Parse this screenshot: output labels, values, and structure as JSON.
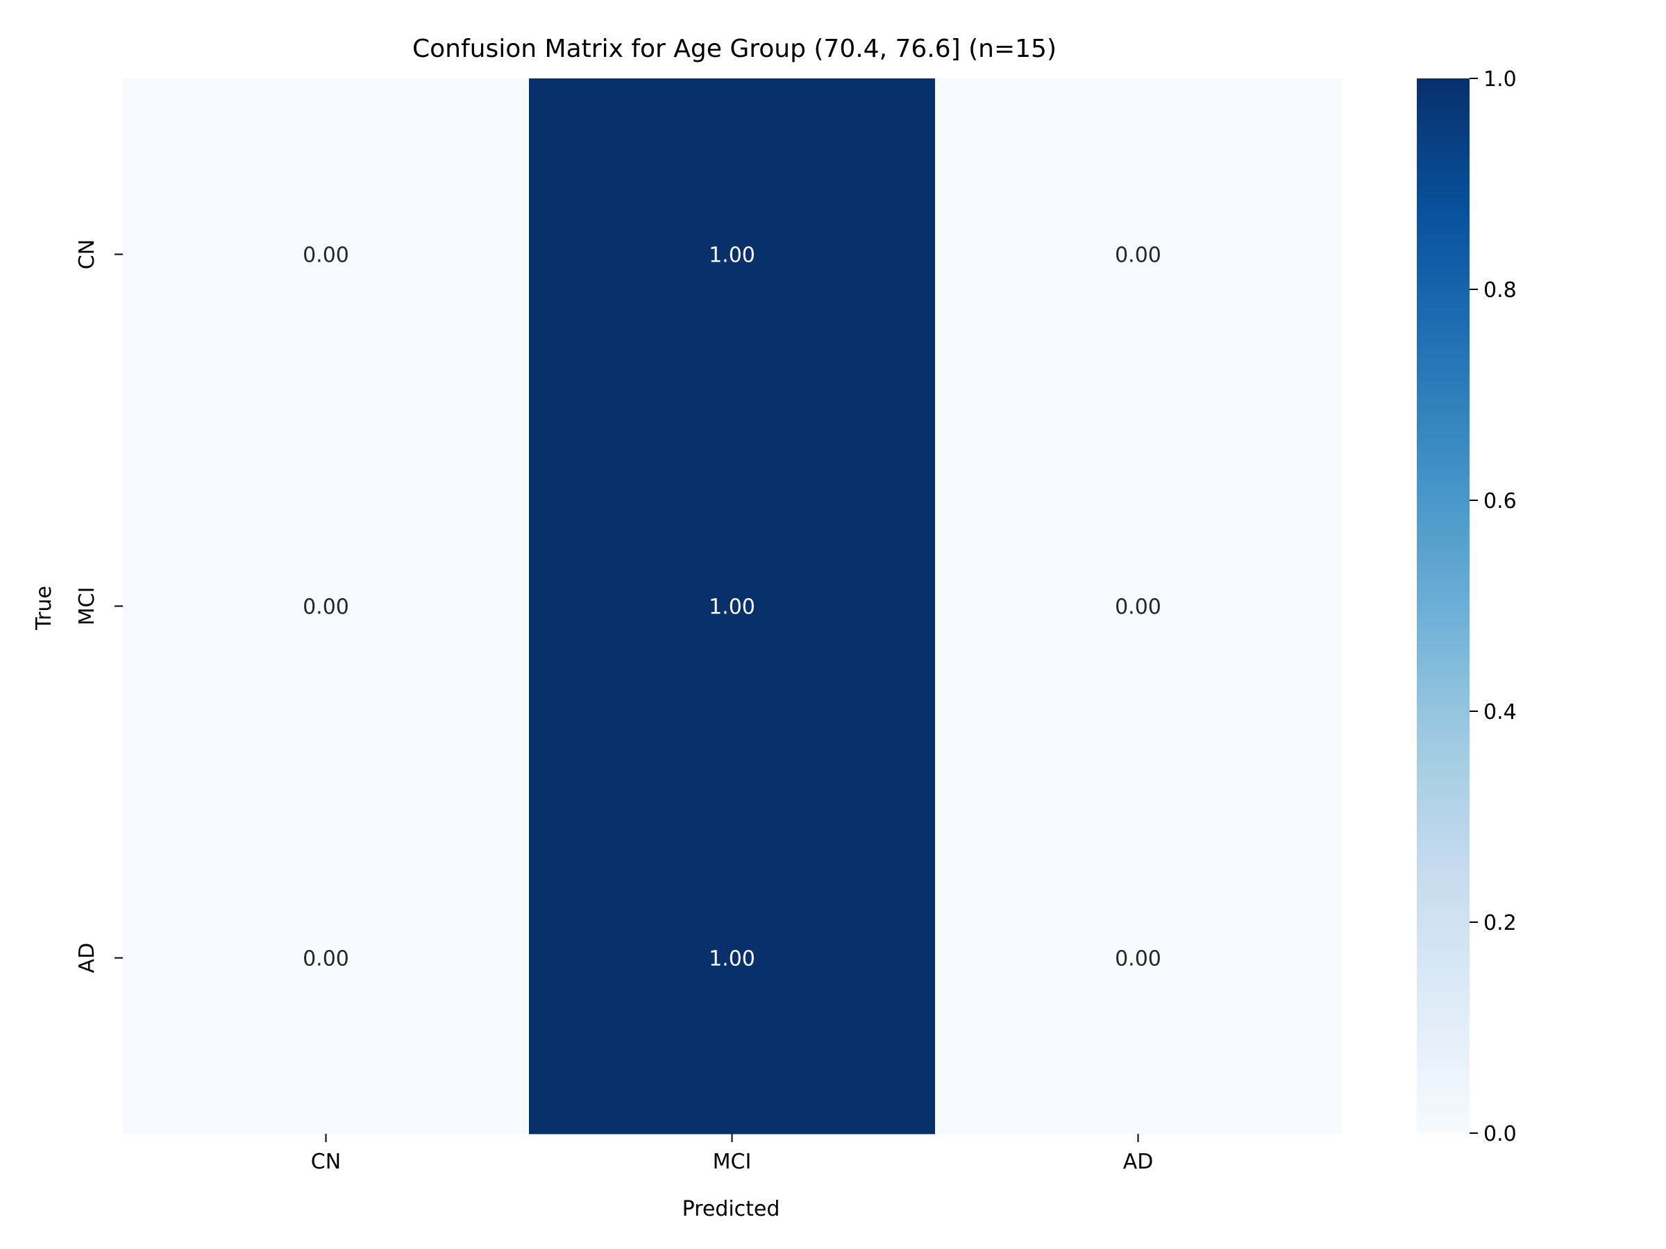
{
  "chart_data": {
    "type": "heatmap",
    "title": "Confusion Matrix for Age Group (70.4, 76.6] (n=15)",
    "xlabel": "Predicted",
    "ylabel": "True",
    "x_categories": [
      "CN",
      "MCI",
      "AD"
    ],
    "y_categories": [
      "CN",
      "MCI",
      "AD"
    ],
    "values": [
      [
        0.0,
        1.0,
        0.0
      ],
      [
        0.0,
        1.0,
        0.0
      ],
      [
        0.0,
        1.0,
        0.0
      ]
    ],
    "annotations": [
      [
        "0.00",
        "1.00",
        "0.00"
      ],
      [
        "0.00",
        "1.00",
        "0.00"
      ],
      [
        "0.00",
        "1.00",
        "0.00"
      ]
    ],
    "colormap": "Blues",
    "color_low": "#f7fbff",
    "color_high": "#08306b",
    "colorbar": {
      "range": [
        0.0,
        1.0
      ],
      "ticks": [
        0.0,
        0.2,
        0.4,
        0.6,
        0.8,
        1.0
      ],
      "tick_labels": [
        "0.0",
        "0.2",
        "0.4",
        "0.6",
        "0.8",
        "1.0"
      ]
    },
    "grid": false
  }
}
